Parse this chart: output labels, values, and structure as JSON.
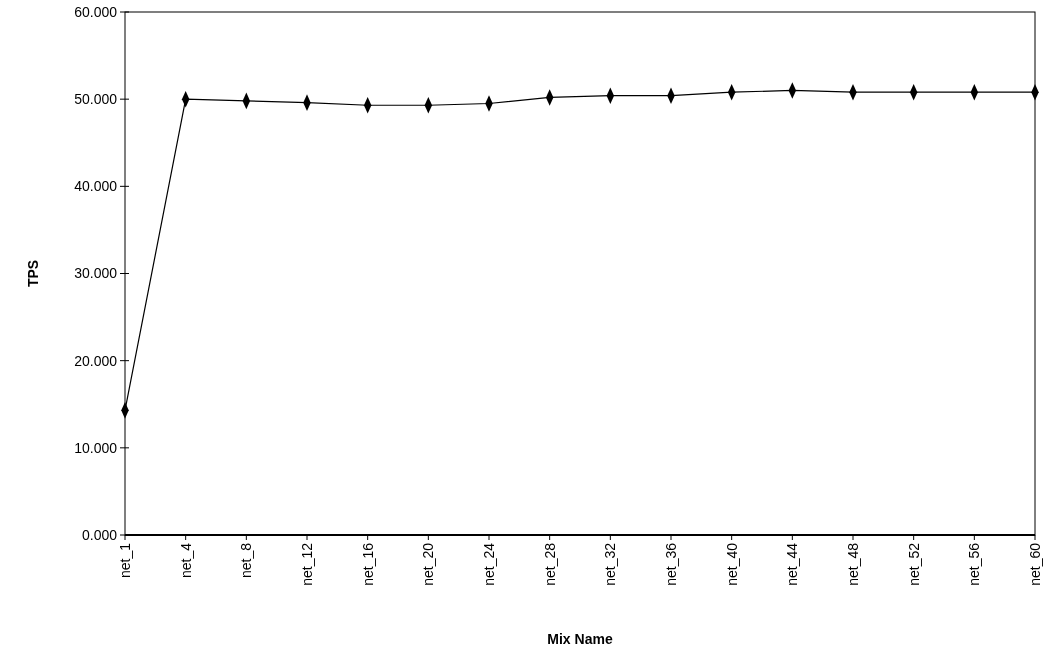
{
  "chart_data": {
    "type": "line",
    "xlabel": "Mix Name",
    "ylabel": "TPS",
    "categories": [
      "net_1",
      "net_4",
      "net_8",
      "net_12",
      "net_16",
      "net_20",
      "net_24",
      "net_28",
      "net_32",
      "net_36",
      "net_40",
      "net_44",
      "net_48",
      "net_52",
      "net_56",
      "net_60"
    ],
    "series": [
      {
        "color": "#000000",
        "values": [
          14.3,
          50.0,
          49.8,
          49.6,
          49.3,
          49.3,
          49.5,
          50.2,
          50.4,
          50.4,
          50.8,
          51.0,
          50.8,
          50.8,
          50.8,
          50.8
        ]
      }
    ],
    "ylim": [
      0,
      60
    ],
    "yticks": [
      {
        "value": 0,
        "label": "0.000"
      },
      {
        "value": 10,
        "label": "10.000"
      },
      {
        "value": 20,
        "label": "20.000"
      },
      {
        "value": 30,
        "label": "30.000"
      },
      {
        "value": 40,
        "label": "40.000"
      },
      {
        "value": 50,
        "label": "50.000"
      },
      {
        "value": 60,
        "label": "60.000"
      }
    ],
    "grid": false,
    "marker": "diamond",
    "line_style": "solid"
  }
}
